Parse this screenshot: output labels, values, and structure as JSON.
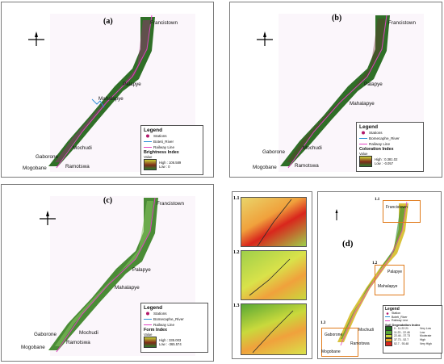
{
  "panels": {
    "a": {
      "label": "(a)",
      "legend": {
        "title": "Legend",
        "items": [
          "Stations",
          "Boteti_River",
          "Railway Line"
        ],
        "index_name": "Brightness Index",
        "value": "Value",
        "high": "High : 106.589",
        "low": "Low : 0"
      }
    },
    "b": {
      "label": "(b)",
      "legend": {
        "title": "Legend",
        "items": [
          "Stations",
          "Bomecaphe_River",
          "Railway Line"
        ],
        "index_name": "Coloration Index",
        "value": "Value",
        "high": "High : 0.381.02",
        "low": "Low : -0.057"
      }
    },
    "c": {
      "label": "(c)",
      "legend": {
        "title": "Legend",
        "items": [
          "Stations",
          "Bomecaphe_River",
          "Railway Line"
        ],
        "index_name": "Form Index",
        "value": "Value",
        "high": "High : 335.003",
        "low": "Low : -365.574"
      }
    },
    "d": {
      "label": "(d)",
      "legend": {
        "title": "Legend",
        "items": [
          "Station",
          "Boteti_River",
          "Railway Line"
        ],
        "index_name": "Soil Degradation Index",
        "classes": [
          {
            "range": "0 - 11.23 21",
            "label": "Very Low",
            "color": "#1e6b1e"
          },
          {
            "range": "11.23 - 22.46",
            "label": "Low",
            "color": "#58a835"
          },
          {
            "range": "22.46 - 37.73",
            "label": "Moderate",
            "color": "#c9d93c"
          },
          {
            "range": "37.73 - 52.7",
            "label": "High",
            "color": "#f0a020"
          },
          {
            "range": "52.7 - 93.48",
            "label": "Very High",
            "color": "#d9261c"
          }
        ]
      }
    }
  },
  "cities": {
    "francistown": "Francistown",
    "palapye": "Palapye",
    "mahalapye": "Mahalapye",
    "mochudi": "Mochudi",
    "gaborone": "Gaborone",
    "ramotswa": "Ramotswa",
    "mogobane": "Mogobane"
  },
  "insets": [
    "1.1",
    "1.2",
    "1.3"
  ],
  "north": "N",
  "colors": {
    "veg_green": "#3a7a2a",
    "river": "#2f8fd8",
    "railway": "#e040c0",
    "station": "#b2186a",
    "box": "#e07a1a"
  }
}
